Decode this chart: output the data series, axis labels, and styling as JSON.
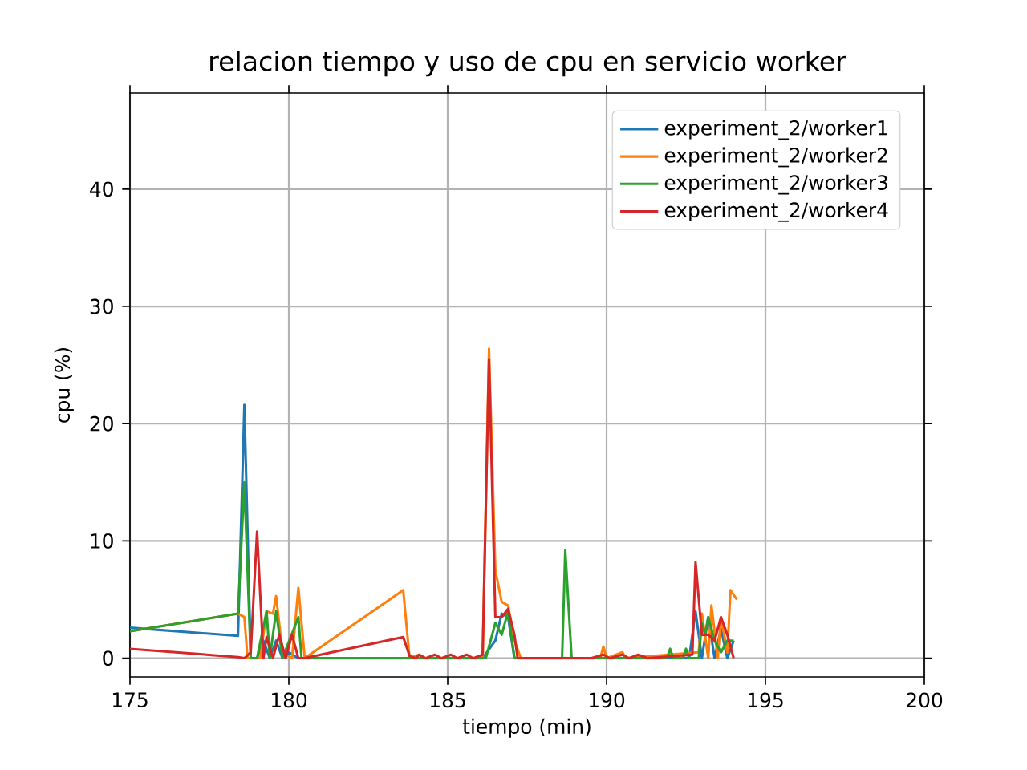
{
  "chart_data": {
    "type": "line",
    "title": "relacion tiempo y uso de cpu en servicio worker",
    "xlabel": "tiempo (min)",
    "ylabel": "cpu (%)",
    "xlim": [
      175,
      200
    ],
    "ylim": [
      -1.6,
      48.2
    ],
    "xticks": [
      175,
      180,
      185,
      190,
      195,
      200
    ],
    "yticks": [
      0,
      10,
      20,
      30,
      40
    ],
    "grid": true,
    "legend": "top right",
    "series": [
      {
        "name": "experiment_2/worker1",
        "color": "#1f77b4",
        "x": [
          175,
          178.4,
          178.6,
          178.8,
          179.0,
          179.2,
          179.4,
          179.6,
          179.8,
          180.0,
          180.3,
          180.5,
          183.6,
          183.8,
          184.1,
          184.4,
          184.7,
          185.0,
          185.3,
          185.6,
          185.9,
          186.1,
          186.3,
          186.5,
          186.7,
          186.9,
          187.1,
          187.3,
          188.0,
          189.0,
          190.0,
          191.0,
          192.0,
          192.6,
          192.8,
          193.0,
          193.2,
          193.4,
          193.6,
          193.8,
          194.0
        ],
        "values": [
          2.6,
          1.9,
          21.6,
          0,
          0,
          1.5,
          0,
          1.5,
          0,
          0.5,
          0,
          0,
          0,
          0,
          0,
          0,
          0,
          0,
          0,
          0,
          0,
          0,
          null,
          1.5,
          3.8,
          3.5,
          0,
          0,
          0,
          0,
          0,
          0,
          0,
          0,
          4,
          0,
          3.5,
          0,
          2.5,
          0,
          1.5
        ]
      },
      {
        "name": "experiment_2/worker2",
        "color": "#ff7f0e",
        "x": [
          175,
          178.4,
          178.6,
          178.7,
          179.1,
          179.3,
          179.5,
          179.6,
          179.8,
          180.1,
          180.3,
          180.5,
          183.6,
          183.8,
          184.1,
          184.3,
          186.1,
          186.3,
          186.5,
          186.7,
          186.9,
          187.1,
          187.3,
          189.8,
          189.9,
          190.0,
          190.5,
          190.6,
          192.9,
          193.0,
          193.2,
          193.3,
          193.5,
          193.6,
          193.8,
          193.9,
          194.1
        ],
        "values": [
          2.3,
          3.8,
          3.5,
          0,
          0,
          4,
          3.8,
          5.3,
          0.5,
          0,
          6,
          0,
          5.8,
          0,
          0.3,
          0,
          0,
          26.4,
          7.5,
          4.8,
          4.5,
          1.5,
          0,
          0,
          1.0,
          0,
          0.5,
          0,
          0.5,
          3.8,
          0,
          4.5,
          0,
          3.5,
          0.5,
          5.8,
          5.0
        ]
      },
      {
        "name": "experiment_2/worker3",
        "color": "#2ca02c",
        "x": [
          175,
          178.4,
          178.6,
          178.8,
          179.0,
          179.3,
          179.4,
          179.6,
          179.8,
          180.3,
          180.4,
          183.6,
          186.2,
          186.3,
          186.5,
          186.7,
          186.9,
          187.1,
          188.6,
          188.7,
          188.9,
          191.9,
          192.0,
          192.1,
          192.4,
          192.5,
          192.6,
          192.9,
          193.0,
          193.1,
          193.2,
          193.4,
          193.6,
          193.8,
          194.0
        ],
        "values": [
          2.3,
          3.8,
          15,
          0,
          0,
          4,
          0,
          4,
          0,
          3.5,
          0,
          0,
          0,
          null,
          3,
          2,
          4,
          0,
          0,
          9.2,
          0,
          0,
          0.8,
          0,
          0,
          0.8,
          0,
          0,
          3,
          2,
          3.5,
          1.5,
          0.5,
          1.5,
          1.5
        ]
      },
      {
        "name": "experiment_2/worker4",
        "color": "#d62728",
        "x": [
          175,
          178.4,
          178.6,
          178.8,
          179.0,
          179.2,
          179.3,
          179.5,
          179.7,
          179.9,
          180.1,
          180.3,
          180.5,
          183.6,
          183.8,
          184.0,
          184.1,
          184.3,
          184.6,
          184.8,
          185.1,
          185.3,
          185.6,
          185.8,
          186.1,
          186.3,
          186.5,
          186.7,
          186.9,
          187.1,
          187.2,
          189.5,
          189.9,
          190.1,
          190.5,
          190.7,
          191.0,
          191.3,
          192.7,
          192.8,
          193.0,
          193.2,
          193.4,
          193.6,
          193.8,
          194.0
        ],
        "values": [
          0.8,
          0.1,
          0,
          0.5,
          10.8,
          0,
          1.8,
          0,
          2,
          0,
          2,
          0,
          0,
          1.8,
          0.2,
          0,
          0.3,
          0,
          0.3,
          0,
          0.3,
          0,
          0.3,
          0,
          0.3,
          25.5,
          3.5,
          3.5,
          4.2,
          2,
          0,
          0,
          0.3,
          0,
          0.3,
          0,
          0.3,
          0,
          0.3,
          8.2,
          2.0,
          2,
          1.5,
          3.5,
          2.0,
          0
        ]
      }
    ]
  }
}
